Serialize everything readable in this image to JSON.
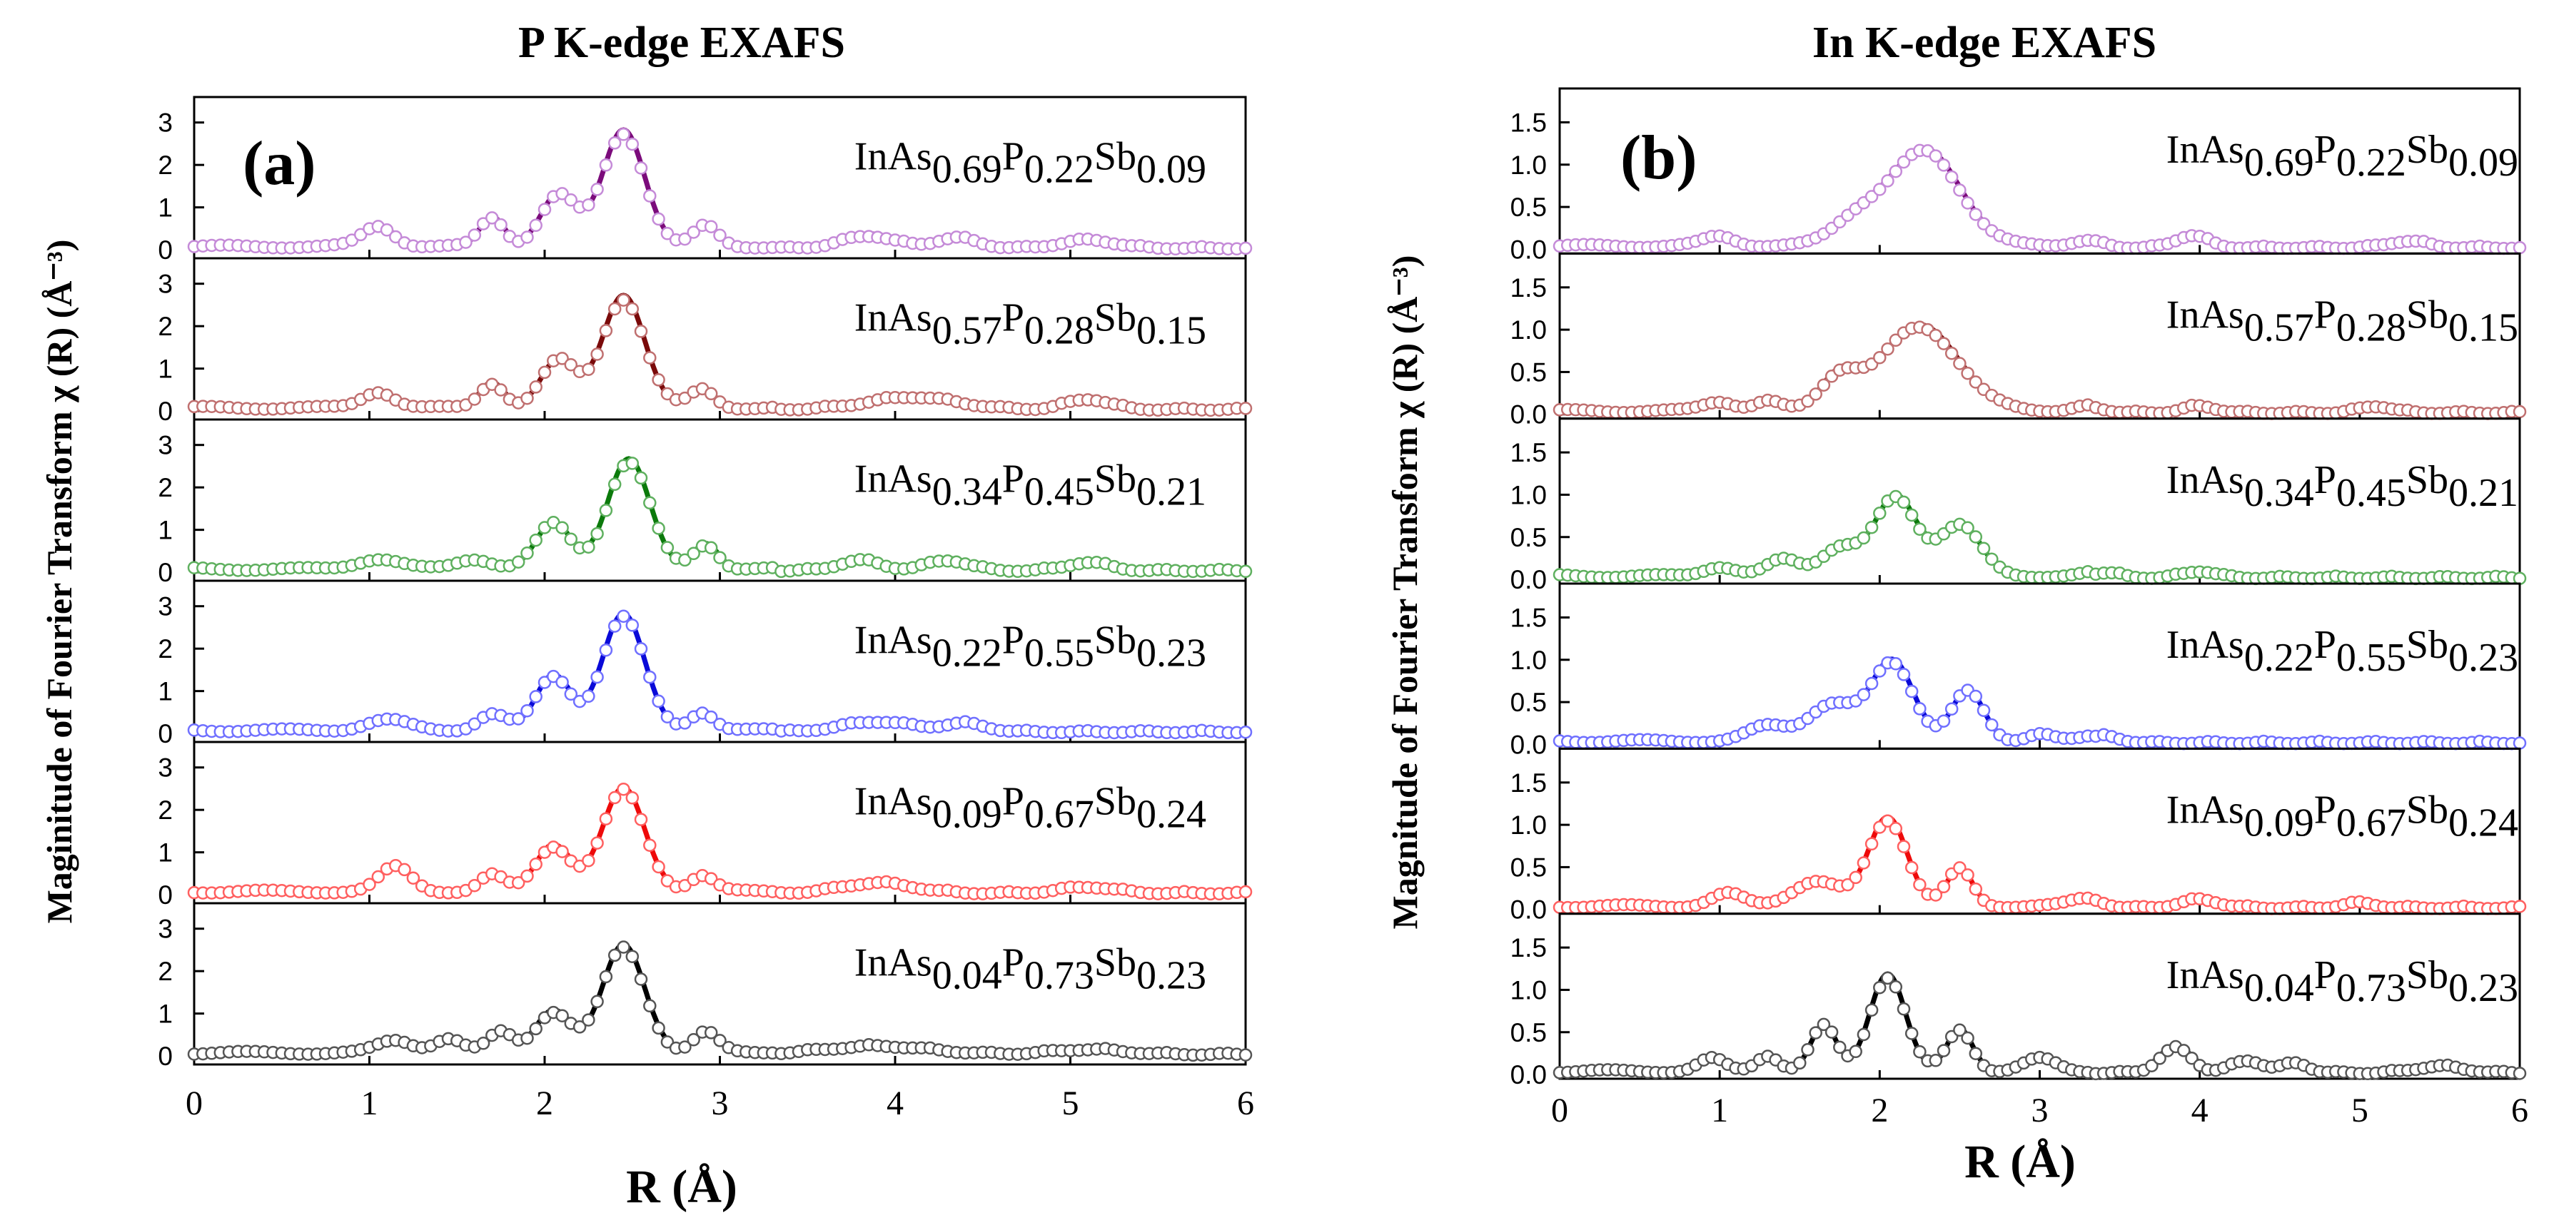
{
  "chart_data": [
    {
      "type": "line",
      "panel": "(a)",
      "title": "P K-edge EXAFS",
      "xlabel": "R (Å)",
      "ylabel": "Maginitude of Fourier Transform χ (R) (Å⁻³)",
      "xlim": [
        0,
        6
      ],
      "xticks": [
        "0",
        "1",
        "2",
        "3",
        "4",
        "5",
        "6"
      ],
      "ylim": [
        -0.2,
        3.6
      ],
      "yticks": [
        "0",
        "1",
        "2",
        "3"
      ],
      "series_style": "filled line = fit, open circles = experiment",
      "subplots": [
        {
          "sample": {
            "a": "InAs",
            "x1": "0.69",
            "b": "P",
            "x2": "0.22",
            "c": "Sb",
            "x3": "0.09"
          },
          "color": "#7b0b7b",
          "marker_color": "#c58bd8",
          "peaks": [
            [
              1.05,
              0.5,
              0.09
            ],
            [
              1.7,
              0.7,
              0.07
            ],
            [
              2.08,
              1.25,
              0.1
            ],
            [
              2.45,
              2.75,
              0.12
            ],
            [
              2.92,
              0.5,
              0.07
            ],
            [
              3.85,
              0.3,
              0.15
            ],
            [
              4.35,
              0.25,
              0.12
            ],
            [
              5.1,
              0.2,
              0.15
            ]
          ]
        },
        {
          "sample": {
            "a": "InAs",
            "x1": "0.57",
            "b": "P",
            "x2": "0.28",
            "c": "Sb",
            "x3": "0.15"
          },
          "color": "#7a0a0a",
          "marker_color": "#c07070",
          "peaks": [
            [
              1.05,
              0.4,
              0.09
            ],
            [
              1.7,
              0.6,
              0.07
            ],
            [
              2.08,
              1.15,
              0.1
            ],
            [
              2.45,
              2.65,
              0.12
            ],
            [
              2.9,
              0.45,
              0.07
            ],
            [
              4.1,
              0.3,
              0.25
            ],
            [
              5.1,
              0.25,
              0.12
            ]
          ]
        },
        {
          "sample": {
            "a": "InAs",
            "x1": "0.34",
            "b": "P",
            "x2": "0.45",
            "c": "Sb",
            "x3": "0.21"
          },
          "color": "#0b7a0b",
          "marker_color": "#5fb05f",
          "peaks": [
            [
              1.05,
              0.25,
              0.12
            ],
            [
              1.6,
              0.25,
              0.1
            ],
            [
              2.05,
              1.1,
              0.1
            ],
            [
              2.48,
              2.6,
              0.12
            ],
            [
              2.92,
              0.6,
              0.07
            ],
            [
              3.8,
              0.25,
              0.12
            ],
            [
              4.3,
              0.25,
              0.12
            ],
            [
              5.1,
              0.2,
              0.12
            ]
          ]
        },
        {
          "sample": {
            "a": "InAs",
            "x1": "0.22",
            "b": "P",
            "x2": "0.55",
            "c": "Sb",
            "x3": "0.23"
          },
          "color": "#0a0ad8",
          "marker_color": "#7070ff",
          "peaks": [
            [
              1.1,
              0.25,
              0.12
            ],
            [
              1.7,
              0.4,
              0.08
            ],
            [
              2.05,
              1.3,
              0.1
            ],
            [
              2.45,
              2.75,
              0.12
            ],
            [
              2.9,
              0.45,
              0.07
            ],
            [
              3.9,
              0.25,
              0.2
            ],
            [
              4.4,
              0.2,
              0.12
            ]
          ]
        },
        {
          "sample": {
            "a": "InAs",
            "x1": "0.09",
            "b": "P",
            "x2": "0.67",
            "c": "Sb",
            "x3": "0.24"
          },
          "color": "#ee0a0a",
          "marker_color": "#ff6060",
          "peaks": [
            [
              1.15,
              0.6,
              0.09
            ],
            [
              1.7,
              0.4,
              0.07
            ],
            [
              2.05,
              1.1,
              0.1
            ],
            [
              2.45,
              2.45,
              0.12
            ],
            [
              2.9,
              0.4,
              0.07
            ],
            [
              3.9,
              0.25,
              0.2
            ],
            [
              5.1,
              0.15,
              0.15
            ]
          ]
        },
        {
          "sample": {
            "a": "InAs",
            "x1": "0.04",
            "b": "P",
            "x2": "0.73",
            "c": "Sb",
            "x3": "0.23"
          },
          "color": "#000000",
          "marker_color": "#555555",
          "peaks": [
            [
              1.15,
              0.3,
              0.1
            ],
            [
              1.45,
              0.35,
              0.08
            ],
            [
              1.75,
              0.5,
              0.07
            ],
            [
              2.05,
              1.0,
              0.1
            ],
            [
              2.45,
              2.55,
              0.12
            ],
            [
              2.92,
              0.5,
              0.07
            ],
            [
              3.9,
              0.2,
              0.3
            ],
            [
              5.1,
              0.12,
              0.2
            ]
          ]
        }
      ]
    },
    {
      "type": "line",
      "panel": "(b)",
      "title": "In K-edge EXAFS",
      "xlabel": "R (Å)",
      "ylabel": "Magnitude of Fourier Transform χ (R) (Å⁻³)",
      "xlim": [
        0,
        6
      ],
      "xticks": [
        "0",
        "1",
        "2",
        "3",
        "4",
        "5",
        "6"
      ],
      "ylim": [
        -0.05,
        1.9
      ],
      "yticks": [
        "0.0",
        "0.5",
        "1.0",
        "1.5"
      ],
      "series_style": "filled line = fit, open circles = experiment",
      "subplots": [
        {
          "sample": {
            "a": "InAs",
            "x1": "0.69",
            "b": "P",
            "x2": "0.22",
            "c": "Sb",
            "x3": "0.09"
          },
          "color": "#7b0b7b",
          "marker_color": "#c58bd8",
          "peaks": [
            [
              1.0,
              0.12,
              0.1
            ],
            [
              1.85,
              0.3,
              0.15
            ],
            [
              2.28,
              1.15,
              0.22
            ],
            [
              3.3,
              0.08,
              0.1
            ],
            [
              3.95,
              0.15,
              0.1
            ],
            [
              5.3,
              0.08,
              0.12
            ]
          ]
        },
        {
          "sample": {
            "a": "InAs",
            "x1": "0.57",
            "b": "P",
            "x2": "0.28",
            "c": "Sb",
            "x3": "0.15"
          },
          "color": "#7a0a0a",
          "marker_color": "#c07070",
          "peaks": [
            [
              1.0,
              0.12,
              0.1
            ],
            [
              1.3,
              0.12,
              0.08
            ],
            [
              1.75,
              0.4,
              0.12
            ],
            [
              2.25,
              1.02,
              0.24
            ],
            [
              3.3,
              0.07,
              0.1
            ],
            [
              4.0,
              0.08,
              0.1
            ],
            [
              5.1,
              0.08,
              0.1
            ]
          ]
        },
        {
          "sample": {
            "a": "InAs",
            "x1": "0.34",
            "b": "P",
            "x2": "0.45",
            "c": "Sb",
            "x3": "0.21"
          },
          "color": "#0b7a0b",
          "marker_color": "#5fb05f",
          "peaks": [
            [
              1.0,
              0.12,
              0.1
            ],
            [
              1.4,
              0.2,
              0.1
            ],
            [
              1.75,
              0.35,
              0.12
            ],
            [
              2.1,
              0.95,
              0.13
            ],
            [
              2.5,
              0.62,
              0.13
            ],
            [
              3.4,
              0.06,
              0.1
            ],
            [
              4.0,
              0.08,
              0.1
            ]
          ]
        },
        {
          "sample": {
            "a": "InAs",
            "x1": "0.22",
            "b": "P",
            "x2": "0.55",
            "c": "Sb",
            "x3": "0.23"
          },
          "color": "#0a0ad8",
          "marker_color": "#7070ff",
          "peaks": [
            [
              1.3,
              0.18,
              0.12
            ],
            [
              1.7,
              0.45,
              0.15
            ],
            [
              2.08,
              0.95,
              0.13
            ],
            [
              2.55,
              0.6,
              0.1
            ],
            [
              3.0,
              0.1,
              0.08
            ],
            [
              3.4,
              0.08,
              0.1
            ]
          ]
        },
        {
          "sample": {
            "a": "InAs",
            "x1": "0.09",
            "b": "P",
            "x2": "0.67",
            "c": "Sb",
            "x3": "0.24"
          },
          "color": "#ee0a0a",
          "marker_color": "#ff6060",
          "peaks": [
            [
              1.05,
              0.15,
              0.1
            ],
            [
              1.6,
              0.3,
              0.15
            ],
            [
              2.05,
              1.05,
              0.12
            ],
            [
              2.5,
              0.45,
              0.08
            ],
            [
              3.3,
              0.1,
              0.1
            ],
            [
              4.0,
              0.1,
              0.12
            ],
            [
              5.0,
              0.06,
              0.1
            ]
          ]
        },
        {
          "sample": {
            "a": "InAs",
            "x1": "0.04",
            "b": "P",
            "x2": "0.73",
            "c": "Sb",
            "x3": "0.23"
          },
          "color": "#000000",
          "marker_color": "#555555",
          "peaks": [
            [
              0.95,
              0.15,
              0.08
            ],
            [
              1.3,
              0.2,
              0.07
            ],
            [
              1.65,
              0.55,
              0.08
            ],
            [
              2.05,
              1.15,
              0.11
            ],
            [
              2.5,
              0.5,
              0.08
            ],
            [
              3.0,
              0.15,
              0.1
            ],
            [
              3.85,
              0.3,
              0.1
            ],
            [
              4.3,
              0.15,
              0.1
            ],
            [
              4.6,
              0.12,
              0.08
            ],
            [
              5.5,
              0.08,
              0.15
            ]
          ]
        }
      ]
    }
  ]
}
